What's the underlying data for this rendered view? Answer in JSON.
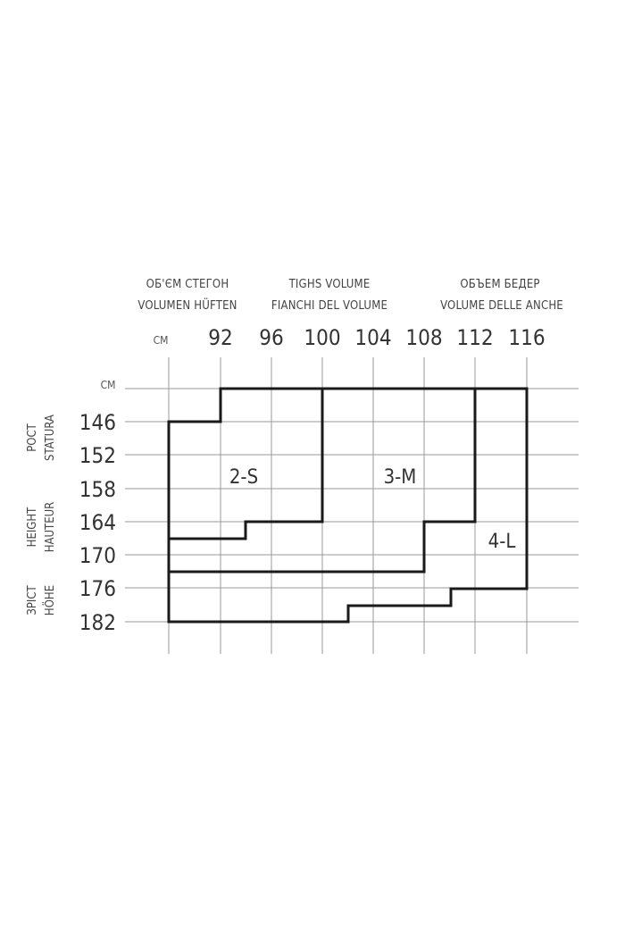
{
  "header_labels": {
    "col1": [
      "ОБ'ЄМ СТЕГОН",
      "VOLUMEN HÜFTEN"
    ],
    "col2": [
      "TIGHS VOLUME",
      "FIANCHI DEL VOLUME"
    ],
    "col3": [
      "ОБЪЕМ БЕДЕР",
      "VOLUME DELLE ANCHE"
    ]
  },
  "hip_unit": "CM",
  "height_unit": "CM",
  "hip_ticks": [
    "92",
    "96",
    "100",
    "104",
    "108",
    "112",
    "116"
  ],
  "height_ticks": [
    "146",
    "152",
    "158",
    "164",
    "170",
    "176",
    "182"
  ],
  "height_axis_labels": [
    [
      "РОСТ",
      "STATURA"
    ],
    [
      "HEIGHT",
      "HAUTEUR"
    ],
    [
      "ЗРІСТ",
      "HÖHE"
    ]
  ],
  "sizes": [
    "2-S",
    "3-M",
    "4-L"
  ],
  "colors": {
    "line": "#1a1a1a",
    "grid": "#999999",
    "text": "#333333"
  }
}
